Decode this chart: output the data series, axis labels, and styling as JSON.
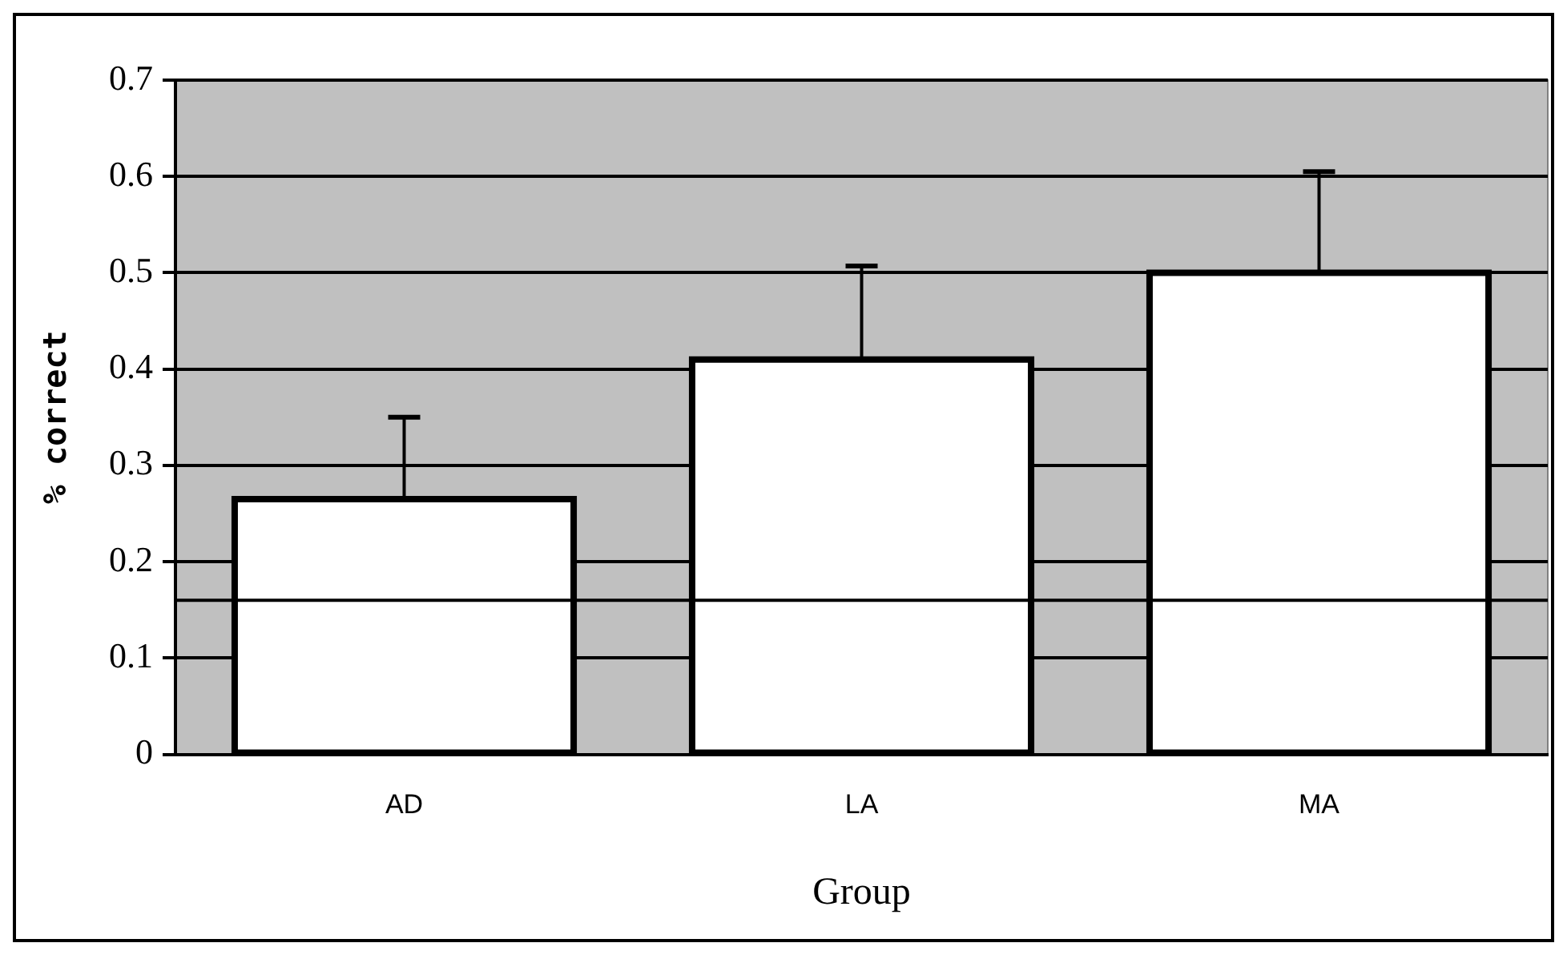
{
  "chart_data": {
    "type": "bar",
    "xlabel": "Group",
    "ylabel": "% correct",
    "categories": [
      "AD",
      "LA",
      "MA"
    ],
    "values": [
      0.265,
      0.41,
      0.5
    ],
    "color": "#ffffff",
    "errors": [
      [
        0.265,
        0.35
      ],
      [
        0.41,
        0.507
      ],
      [
        0.5,
        0.605
      ]
    ],
    "ylim": [
      0,
      0.7
    ],
    "yticks": [
      0,
      0.1,
      0.2,
      0.3,
      0.4,
      0.5,
      0.6,
      0.7
    ],
    "grid": "y",
    "legend": false,
    "ref_lines": [
      {
        "axis": "y",
        "value": 0.16,
        "color": "#000000"
      }
    ]
  }
}
